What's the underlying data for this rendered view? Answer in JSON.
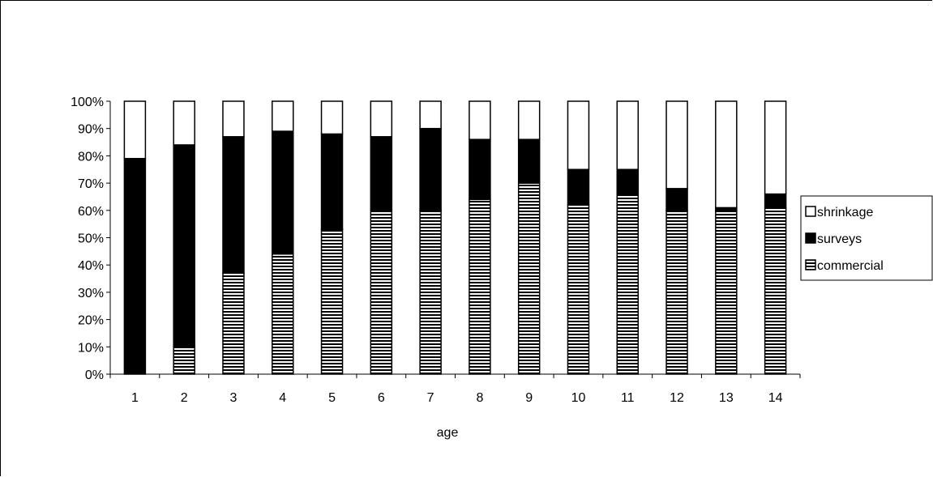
{
  "chart_data": {
    "type": "bar",
    "stacked": true,
    "percent": true,
    "categories": [
      "1",
      "2",
      "3",
      "4",
      "5",
      "6",
      "7",
      "8",
      "9",
      "10",
      "11",
      "12",
      "13",
      "14"
    ],
    "series": [
      {
        "name": "commercial",
        "values": [
          0,
          10,
          37,
          44,
          53,
          60,
          60,
          64,
          70,
          62,
          66,
          60,
          60,
          61
        ],
        "fill": "hatched"
      },
      {
        "name": "surveys",
        "values": [
          79,
          74,
          50,
          45,
          35,
          27,
          30,
          22,
          16,
          13,
          9,
          8,
          1,
          5
        ],
        "fill": "#000000"
      },
      {
        "name": "shrinkage",
        "values": [
          21,
          16,
          13,
          11,
          12,
          13,
          10,
          14,
          14,
          25,
          25,
          32,
          39,
          34
        ],
        "fill": "#ffffff"
      }
    ],
    "ylim": [
      0,
      100
    ],
    "ytick_labels": [
      "0%",
      "10%",
      "20%",
      "30%",
      "40%",
      "50%",
      "60%",
      "70%",
      "80%",
      "90%",
      "100%"
    ],
    "xlabel": "age",
    "ylabel": "",
    "title": "",
    "legend_position": "right",
    "grid": false
  }
}
